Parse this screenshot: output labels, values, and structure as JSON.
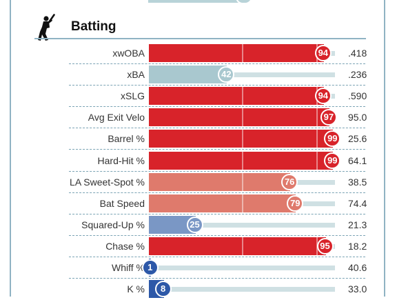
{
  "section": {
    "title": "Batting",
    "icon": "batter-icon"
  },
  "colors": {
    "frame": "#8fb3c3",
    "track": "#cfe0e3"
  },
  "metrics": [
    {
      "label": "xwOBA",
      "percentile": 94,
      "value": ".418",
      "color": "#d8232a"
    },
    {
      "label": "xBA",
      "percentile": 42,
      "value": ".236",
      "color": "#a9c8cf"
    },
    {
      "label": "xSLG",
      "percentile": 94,
      "value": ".590",
      "color": "#d8232a"
    },
    {
      "label": "Avg Exit Velo",
      "percentile": 97,
      "value": "95.0",
      "color": "#d8232a"
    },
    {
      "label": "Barrel %",
      "percentile": 99,
      "value": "25.6",
      "color": "#d8232a"
    },
    {
      "label": "Hard-Hit %",
      "percentile": 99,
      "value": "64.1",
      "color": "#d8232a"
    },
    {
      "label": "LA Sweet-Spot %",
      "percentile": 76,
      "value": "38.5",
      "color": "#df7a6c"
    },
    {
      "label": "Bat Speed",
      "percentile": 79,
      "value": "74.4",
      "color": "#df7a6c"
    },
    {
      "label": "Squared-Up %",
      "percentile": 25,
      "value": "21.3",
      "color": "#7a97c5"
    },
    {
      "label": "Chase %",
      "percentile": 95,
      "value": "18.2",
      "color": "#d8232a"
    },
    {
      "label": "Whiff %",
      "percentile": 1,
      "value": "40.6",
      "color": "#2d58a8"
    },
    {
      "label": "K %",
      "percentile": 8,
      "value": "33.0",
      "color": "#2d58a8"
    }
  ]
}
